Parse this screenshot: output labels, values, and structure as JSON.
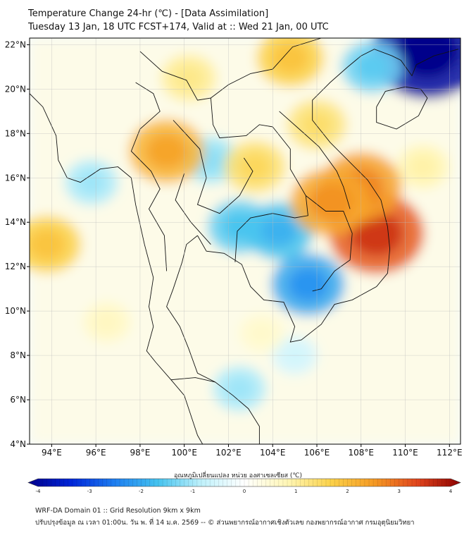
{
  "header": {
    "title_line1": "Temperature Change 24-hr (℃) - [Data Assimilation]",
    "title_line2": "Tuesday 13 Jan, 18 UTC FCST+174, Valid at :: Wed 21 Jan, 00 UTC"
  },
  "map": {
    "lon_labels": [
      "94°E",
      "96°E",
      "98°E",
      "100°E",
      "102°E",
      "104°E",
      "106°E",
      "108°E",
      "110°E",
      "112°E"
    ],
    "lat_labels": [
      "22°N",
      "20°N",
      "18°N",
      "16°N",
      "14°N",
      "12°N",
      "10°N",
      "8°N",
      "6°N",
      "4°N"
    ],
    "lon_range": [
      93,
      112.5
    ],
    "lat_range": [
      4,
      22.3
    ],
    "grid": true,
    "anomaly_blobs": [
      {
        "lon": 102.5,
        "lat": 13.8,
        "value": -1.4
      },
      {
        "lon": 104.3,
        "lat": 13.6,
        "value": -1.6
      },
      {
        "lon": 105.6,
        "lat": 11.2,
        "value": -1.9
      },
      {
        "lon": 101.2,
        "lat": 16.8,
        "value": -1.0
      },
      {
        "lon": 111.0,
        "lat": 21.7,
        "value": -3.8
      },
      {
        "lon": 108.5,
        "lat": 21.0,
        "value": -1.3
      },
      {
        "lon": 95.8,
        "lat": 15.8,
        "value": -0.9
      },
      {
        "lon": 102.5,
        "lat": 6.5,
        "value": -0.9
      },
      {
        "lon": 105.0,
        "lat": 8.0,
        "value": -0.5
      },
      {
        "lon": 108.7,
        "lat": 13.5,
        "value": 3.0
      },
      {
        "lon": 108.0,
        "lat": 15.6,
        "value": 2.3
      },
      {
        "lon": 106.6,
        "lat": 14.9,
        "value": 2.2
      },
      {
        "lon": 99.2,
        "lat": 17.2,
        "value": 2.0
      },
      {
        "lon": 106.0,
        "lat": 18.4,
        "value": 1.2
      },
      {
        "lon": 103.2,
        "lat": 16.5,
        "value": 1.3
      },
      {
        "lon": 104.8,
        "lat": 21.4,
        "value": 1.6
      },
      {
        "lon": 93.8,
        "lat": 13.0,
        "value": 1.6
      },
      {
        "lon": 100.2,
        "lat": 20.5,
        "value": 1.0
      },
      {
        "lon": 110.8,
        "lat": 16.5,
        "value": 0.8
      },
      {
        "lon": 96.5,
        "lat": 9.5,
        "value": 0.6
      },
      {
        "lon": 103.5,
        "lat": 9.0,
        "value": 0.5
      }
    ]
  },
  "colorbar": {
    "title": "อุณหภูมิเปลี่ยนแปลง หน่วย องศาเซลเซียส (℃)",
    "ticks": [
      "-4",
      "-3",
      "-2",
      "-1",
      "0",
      "1",
      "2",
      "3",
      "4"
    ],
    "min": -4,
    "max": 4,
    "colors": [
      "#00008b",
      "#0026d9",
      "#1e7ef0",
      "#45c3ef",
      "#bff1fb",
      "#ffffff",
      "#fff6b5",
      "#fbd24a",
      "#f59a24",
      "#e0451d",
      "#8b0000"
    ]
  },
  "footer": {
    "line1": "WRF-DA Domain 01 :: Grid Resolution 9km x 9km",
    "line2": "ปรับปรุงข้อมูล ณ เวลา 01:00น. วัน พ. ที่ 14 ม.ค. 2569 -- © ส่วนพยากรณ์อากาศเชิงตัวเลข กองพยากรณ์อากาศ กรมอุตุนิยมวิทยา"
  }
}
